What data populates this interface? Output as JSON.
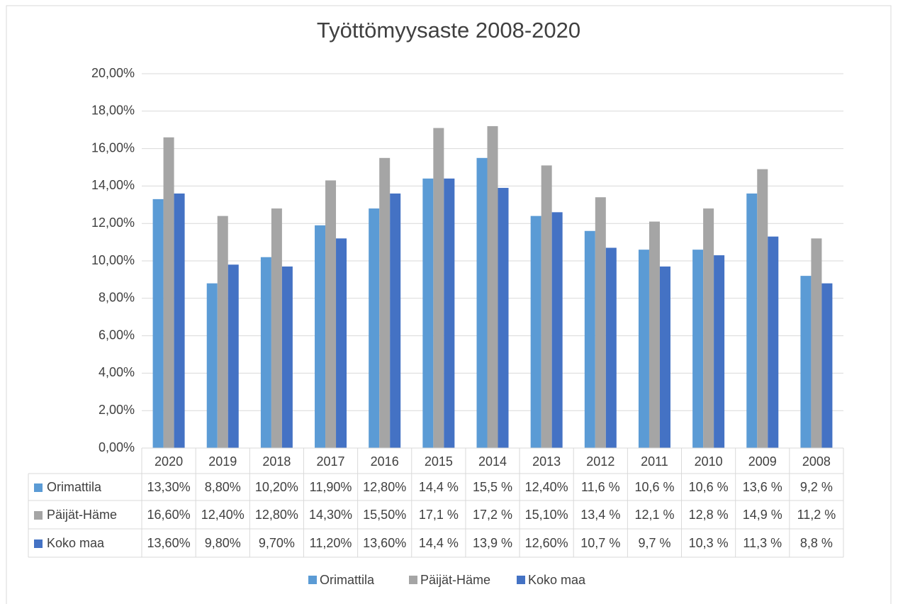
{
  "chart_data": {
    "type": "bar",
    "title": "Työttömyysaste 2008-2020",
    "categories": [
      "2020",
      "2019",
      "2018",
      "2017",
      "2016",
      "2015",
      "2014",
      "2013",
      "2012",
      "2011",
      "2010",
      "2009",
      "2008"
    ],
    "series": [
      {
        "name": "Orimattila",
        "color": "#5b9bd5",
        "values": [
          13.3,
          8.8,
          10.2,
          11.9,
          12.8,
          14.4,
          15.5,
          12.4,
          11.6,
          10.6,
          10.6,
          13.6,
          9.2
        ],
        "value_labels": [
          "13,30%",
          "8,80%",
          "10,20%",
          "11,90%",
          "12,80%",
          "14,4 %",
          "15,5 %",
          "12,40%",
          "11,6 %",
          "10,6 %",
          "10,6 %",
          "13,6 %",
          "9,2 %"
        ]
      },
      {
        "name": "Päijät-Häme",
        "color": "#a5a5a5",
        "values": [
          16.6,
          12.4,
          12.8,
          14.3,
          15.5,
          17.1,
          17.2,
          15.1,
          13.4,
          12.1,
          12.8,
          14.9,
          11.2
        ],
        "value_labels": [
          "16,60%",
          "12,40%",
          "12,80%",
          "14,30%",
          "15,50%",
          "17,1 %",
          "17,2 %",
          "15,10%",
          "13,4 %",
          "12,1 %",
          "12,8 %",
          "14,9 %",
          "11,2 %"
        ]
      },
      {
        "name": "Koko maa",
        "color": "#4472c4",
        "values": [
          13.6,
          9.8,
          9.7,
          11.2,
          13.6,
          14.4,
          13.9,
          12.6,
          10.7,
          9.7,
          10.3,
          11.3,
          8.8
        ],
        "value_labels": [
          "13,60%",
          "9,80%",
          "9,70%",
          "11,20%",
          "13,60%",
          "14,4 %",
          "13,9 %",
          "12,60%",
          "10,7 %",
          "9,7 %",
          "10,3 %",
          "11,3 %",
          "8,8 %"
        ]
      }
    ],
    "ylim": [
      0,
      20
    ],
    "yticks": [
      {
        "value": 0,
        "label": "0,00%"
      },
      {
        "value": 2,
        "label": "2,00%"
      },
      {
        "value": 4,
        "label": "4,00%"
      },
      {
        "value": 6,
        "label": "6,00%"
      },
      {
        "value": 8,
        "label": "8,00%"
      },
      {
        "value": 10,
        "label": "10,00%"
      },
      {
        "value": 12,
        "label": "12,00%"
      },
      {
        "value": 14,
        "label": "14,00%"
      },
      {
        "value": 16,
        "label": "16,00%"
      },
      {
        "value": 18,
        "label": "18,00%"
      },
      {
        "value": 20,
        "label": "20,00%"
      }
    ],
    "grid": true,
    "legend": "bottom",
    "data_table": true
  }
}
